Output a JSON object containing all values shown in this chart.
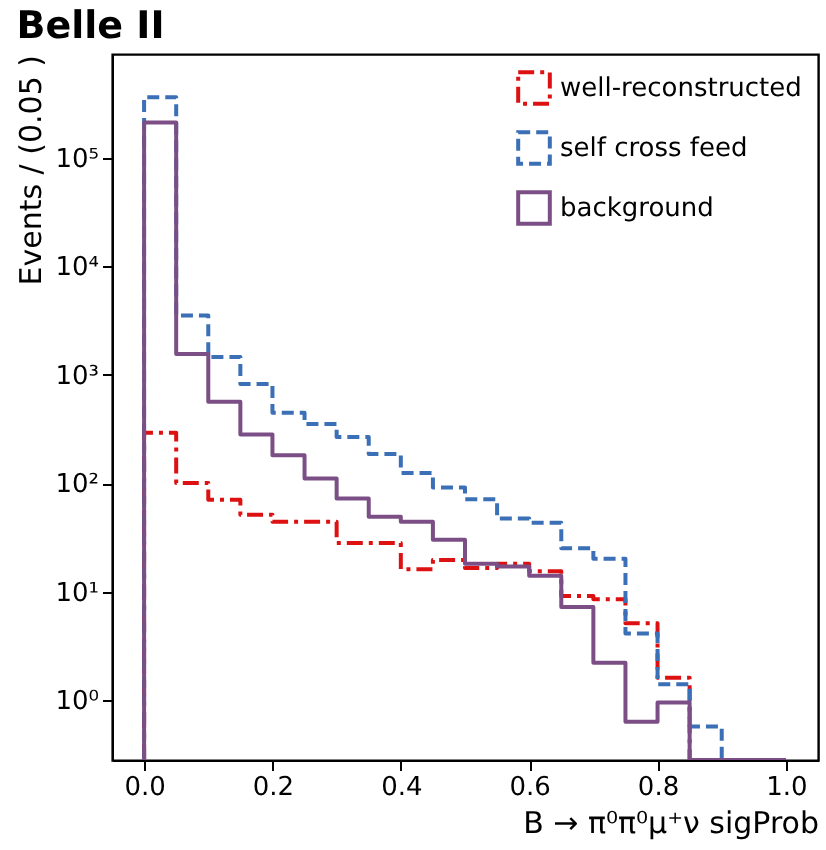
{
  "chart_data": {
    "type": "histogram",
    "title": "Belle II",
    "xlabel": "B → π⁰π⁰μ⁺ν sigProb",
    "ylabel": "Events / (0.05 )",
    "bins": [
      0,
      0.05,
      0.1,
      0.15,
      0.2,
      0.25,
      0.3,
      0.35,
      0.4,
      0.45,
      0.5,
      0.55,
      0.6,
      0.65,
      0.7,
      0.75,
      0.8,
      0.85,
      0.9,
      0.95,
      1.0
    ],
    "series": [
      {
        "name": "well-reconstructed",
        "color": "#dd1111",
        "line_style": "dashdot",
        "values": [
          290,
          100,
          70,
          51,
          44,
          44,
          28,
          28,
          16,
          19.5,
          16.5,
          18,
          15.4,
          9.1,
          8.5,
          5.1,
          1.6,
          null,
          null,
          null
        ]
      },
      {
        "name": "self cross feed",
        "color": "#3b6fb6",
        "line_style": "dashed",
        "values": [
          360000,
          3500,
          1450,
          820,
          445,
          350,
          265,
          185,
          124,
          91,
          71,
          47,
          43,
          25,
          20,
          4.1,
          1.4,
          0.57,
          null,
          null
        ]
      },
      {
        "name": "background",
        "color": "#7b4f85",
        "line_style": "solid",
        "values": [
          210000,
          1550,
          560,
          280,
          180,
          110,
          72,
          49,
          44,
          30,
          18,
          17,
          14,
          7.2,
          2.2,
          0.63,
          0.95,
          null,
          null,
          null
        ]
      }
    ],
    "log": "y",
    "xlim": [
      -0.05,
      1.05
    ],
    "ylim": [
      0.28,
      900000
    ],
    "xticks": [
      {
        "value": 0,
        "label": "0.0"
      },
      {
        "value": 0.2,
        "label": "0.2"
      },
      {
        "value": 0.4,
        "label": "0.4"
      },
      {
        "value": 0.6,
        "label": "0.6"
      },
      {
        "value": 0.8,
        "label": "0.8"
      },
      {
        "value": 1,
        "label": "1.0"
      }
    ],
    "yticks": [
      {
        "value": 1,
        "label": "10⁰"
      },
      {
        "value": 10,
        "label": "10¹"
      },
      {
        "value": 100,
        "label": "10²"
      },
      {
        "value": 1000,
        "label": "10³"
      },
      {
        "value": 10000,
        "label": "10⁴"
      },
      {
        "value": 100000,
        "label": "10⁵"
      }
    ],
    "legend": "top right",
    "grid": false
  }
}
